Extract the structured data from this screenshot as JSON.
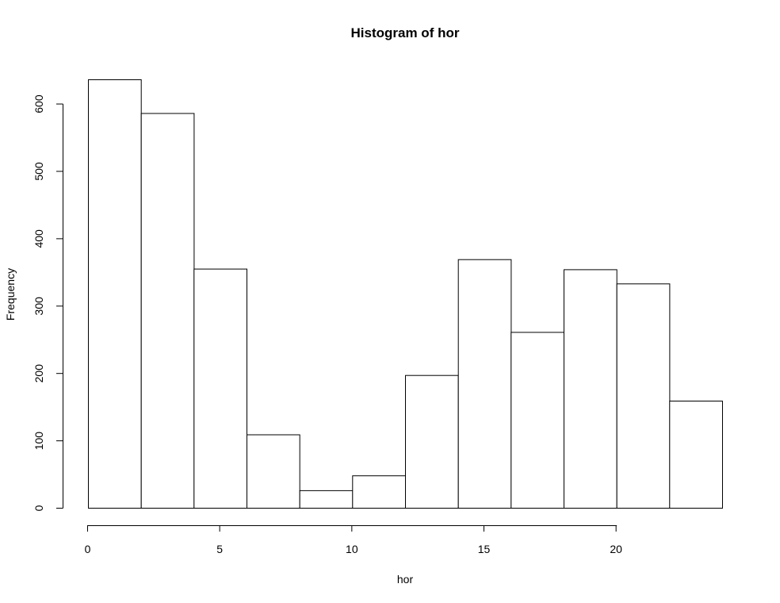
{
  "chart_data": {
    "type": "bar",
    "title": "Histogram of hor",
    "xlabel": "hor",
    "ylabel": "Frequency",
    "bin_edges": [
      0,
      2,
      4,
      6,
      8,
      10,
      12,
      14,
      16,
      18,
      20,
      22,
      24
    ],
    "values": [
      636,
      586,
      355,
      109,
      26,
      48,
      197,
      369,
      261,
      354,
      333,
      159
    ],
    "x_ticks": [
      0,
      5,
      10,
      15,
      20
    ],
    "x_tick_labels": [
      "0",
      "5",
      "10",
      "15",
      "20"
    ],
    "y_ticks": [
      0,
      100,
      200,
      300,
      400,
      500,
      600
    ],
    "y_tick_labels": [
      "0",
      "100",
      "200",
      "300",
      "400",
      "500",
      "600"
    ],
    "xlim": [
      0,
      24
    ],
    "ylim": [
      0,
      636
    ],
    "grid": false,
    "legend": "none"
  }
}
